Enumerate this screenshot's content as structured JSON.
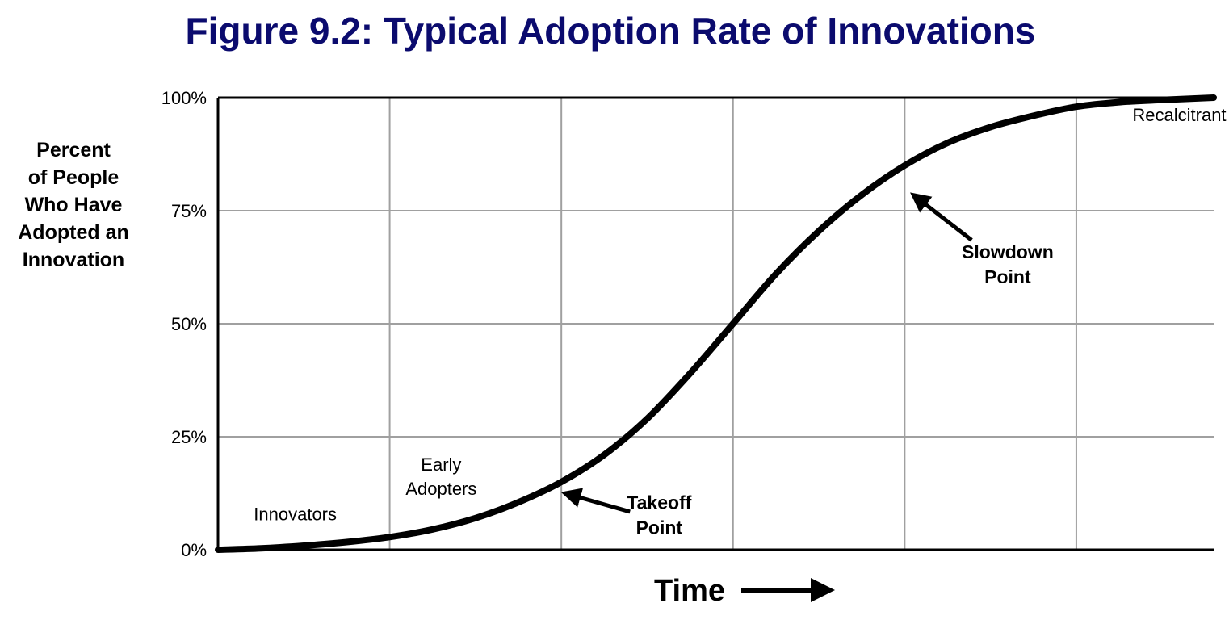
{
  "chart_data": {
    "type": "line",
    "title": "Figure 9.2: Typical Adoption Rate of Innovations",
    "title_color": "#0b0b6e",
    "ylabel_lines": [
      "Percent",
      "of People",
      "Who Have",
      "Adopted an",
      "Innovation"
    ],
    "xlabel": "Time",
    "y_ticks": [
      {
        "value": 0,
        "label": "0%"
      },
      {
        "value": 25,
        "label": "25%"
      },
      {
        "value": 50,
        "label": "50%"
      },
      {
        "value": 75,
        "label": "75%"
      },
      {
        "value": 100,
        "label": "100%"
      }
    ],
    "ylim": [
      0,
      100
    ],
    "xlim": [
      0,
      5.8
    ],
    "x_gridlines": [
      1,
      2,
      3,
      4,
      5
    ],
    "grid": true,
    "grid_color": "#a0a0a0",
    "line_color": "#000000",
    "series": [
      {
        "x": [
          0,
          0.25,
          0.5,
          0.75,
          1.0,
          1.25,
          1.5,
          1.75,
          2.0,
          2.25,
          2.5,
          2.75,
          3.0,
          3.25,
          3.5,
          3.75,
          4.0,
          4.25,
          4.5,
          4.75,
          5.0,
          5.25,
          5.5,
          5.8
        ],
        "values": [
          0,
          0.3,
          0.9,
          1.7,
          2.8,
          4.5,
          7.0,
          10.5,
          15,
          21,
          29,
          39,
          50,
          61,
          70.5,
          78.5,
          85,
          90,
          93.5,
          96,
          98,
          99,
          99.5,
          100
        ]
      }
    ],
    "stage_labels": [
      {
        "lines": [
          "Innovators"
        ],
        "x": 0.45,
        "y": 6.5
      },
      {
        "lines": [
          "Early",
          "Adopters"
        ],
        "x": 1.3,
        "y": 17.5
      },
      {
        "lines": [
          "Recalcitrant"
        ],
        "x": 5.6,
        "y": 94.8
      }
    ],
    "annotations": [
      {
        "lines": [
          "Takeoff",
          "Point"
        ],
        "text_x": 2.57,
        "text_y": 9,
        "arrow_from": [
          2.4,
          8.4
        ],
        "arrow_to": [
          2.02,
          12.5
        ]
      },
      {
        "lines": [
          "Slowdown",
          "Point"
        ],
        "text_x": 4.6,
        "text_y": 64.5,
        "arrow_from": [
          4.39,
          68.5
        ],
        "arrow_to": [
          4.05,
          78.5
        ]
      }
    ]
  }
}
